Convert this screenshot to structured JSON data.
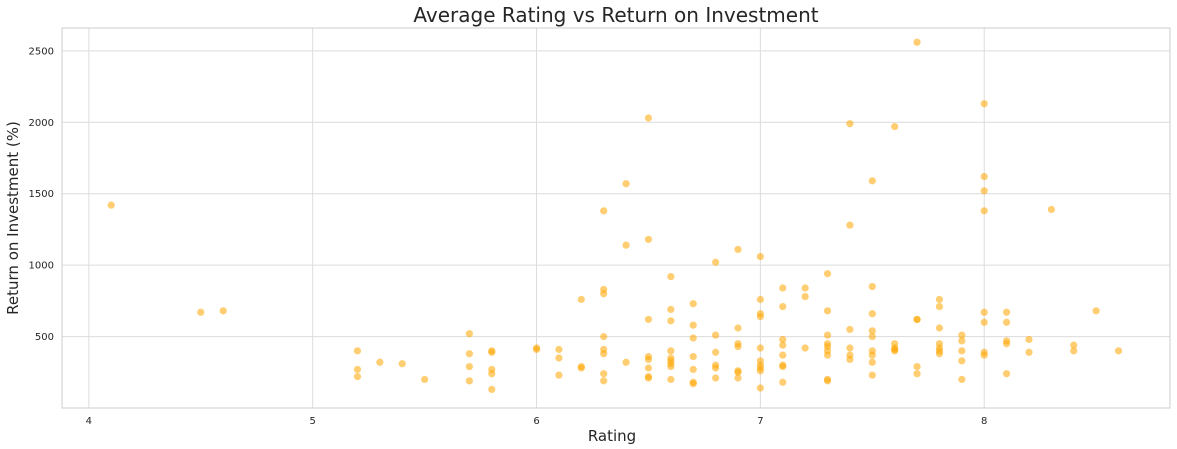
{
  "chart_data": {
    "type": "scatter",
    "title": "Average Rating vs Return on Investment",
    "xlabel": "Rating",
    "ylabel": "Return on Investment (%)",
    "xlim": [
      3.88,
      8.83
    ],
    "ylim": [
      0,
      2660
    ],
    "xticks": [
      4,
      5,
      6,
      7,
      8
    ],
    "yticks": [
      500,
      1000,
      1500,
      2000,
      2500
    ],
    "grid": true,
    "marker_color": "#FFA500",
    "marker_opacity": 0.55,
    "points": [
      [
        4.1,
        1420
      ],
      [
        4.5,
        670
      ],
      [
        4.6,
        680
      ],
      [
        5.2,
        400
      ],
      [
        5.2,
        270
      ],
      [
        5.2,
        220
      ],
      [
        5.3,
        320
      ],
      [
        5.4,
        310
      ],
      [
        5.5,
        200
      ],
      [
        5.7,
        520
      ],
      [
        5.7,
        380
      ],
      [
        5.7,
        290
      ],
      [
        5.7,
        190
      ],
      [
        5.8,
        400
      ],
      [
        5.8,
        390
      ],
      [
        5.8,
        270
      ],
      [
        5.8,
        240
      ],
      [
        5.8,
        130
      ],
      [
        6.0,
        420
      ],
      [
        6.0,
        410
      ],
      [
        6.1,
        410
      ],
      [
        6.1,
        350
      ],
      [
        6.1,
        230
      ],
      [
        6.2,
        760
      ],
      [
        6.2,
        290
      ],
      [
        6.2,
        280
      ],
      [
        6.3,
        1380
      ],
      [
        6.3,
        830
      ],
      [
        6.3,
        800
      ],
      [
        6.3,
        500
      ],
      [
        6.3,
        410
      ],
      [
        6.3,
        380
      ],
      [
        6.3,
        240
      ],
      [
        6.3,
        190
      ],
      [
        6.4,
        1570
      ],
      [
        6.4,
        1140
      ],
      [
        6.4,
        320
      ],
      [
        6.5,
        2030
      ],
      [
        6.5,
        1180
      ],
      [
        6.5,
        620
      ],
      [
        6.5,
        360
      ],
      [
        6.5,
        340
      ],
      [
        6.5,
        280
      ],
      [
        6.5,
        220
      ],
      [
        6.5,
        210
      ],
      [
        6.6,
        920
      ],
      [
        6.6,
        690
      ],
      [
        6.6,
        610
      ],
      [
        6.6,
        400
      ],
      [
        6.6,
        350
      ],
      [
        6.6,
        330
      ],
      [
        6.6,
        310
      ],
      [
        6.6,
        290
      ],
      [
        6.6,
        200
      ],
      [
        6.7,
        730
      ],
      [
        6.7,
        580
      ],
      [
        6.7,
        490
      ],
      [
        6.7,
        360
      ],
      [
        6.7,
        270
      ],
      [
        6.7,
        180
      ],
      [
        6.7,
        170
      ],
      [
        6.8,
        1020
      ],
      [
        6.8,
        510
      ],
      [
        6.8,
        390
      ],
      [
        6.8,
        300
      ],
      [
        6.8,
        280
      ],
      [
        6.8,
        210
      ],
      [
        6.9,
        1110
      ],
      [
        6.9,
        560
      ],
      [
        6.9,
        450
      ],
      [
        6.9,
        430
      ],
      [
        6.9,
        260
      ],
      [
        6.9,
        250
      ],
      [
        6.9,
        210
      ],
      [
        7.0,
        1060
      ],
      [
        7.0,
        760
      ],
      [
        7.0,
        660
      ],
      [
        7.0,
        640
      ],
      [
        7.0,
        420
      ],
      [
        7.0,
        330
      ],
      [
        7.0,
        300
      ],
      [
        7.0,
        280
      ],
      [
        7.0,
        260
      ],
      [
        7.0,
        140
      ],
      [
        7.1,
        840
      ],
      [
        7.1,
        710
      ],
      [
        7.1,
        480
      ],
      [
        7.1,
        440
      ],
      [
        7.1,
        370
      ],
      [
        7.1,
        300
      ],
      [
        7.1,
        290
      ],
      [
        7.1,
        180
      ],
      [
        7.2,
        840
      ],
      [
        7.2,
        780
      ],
      [
        7.2,
        420
      ],
      [
        7.3,
        940
      ],
      [
        7.3,
        680
      ],
      [
        7.3,
        510
      ],
      [
        7.3,
        450
      ],
      [
        7.3,
        430
      ],
      [
        7.3,
        400
      ],
      [
        7.3,
        370
      ],
      [
        7.3,
        200
      ],
      [
        7.3,
        190
      ],
      [
        7.4,
        1990
      ],
      [
        7.4,
        1280
      ],
      [
        7.4,
        550
      ],
      [
        7.4,
        420
      ],
      [
        7.4,
        370
      ],
      [
        7.4,
        340
      ],
      [
        7.5,
        1590
      ],
      [
        7.5,
        850
      ],
      [
        7.5,
        660
      ],
      [
        7.5,
        540
      ],
      [
        7.5,
        500
      ],
      [
        7.5,
        400
      ],
      [
        7.5,
        370
      ],
      [
        7.5,
        320
      ],
      [
        7.5,
        230
      ],
      [
        7.6,
        1970
      ],
      [
        7.6,
        450
      ],
      [
        7.6,
        420
      ],
      [
        7.6,
        410
      ],
      [
        7.6,
        400
      ],
      [
        7.7,
        2560
      ],
      [
        7.7,
        620
      ],
      [
        7.7,
        620
      ],
      [
        7.7,
        290
      ],
      [
        7.7,
        240
      ],
      [
        7.8,
        760
      ],
      [
        7.8,
        710
      ],
      [
        7.8,
        560
      ],
      [
        7.8,
        450
      ],
      [
        7.8,
        420
      ],
      [
        7.8,
        400
      ],
      [
        7.8,
        380
      ],
      [
        7.9,
        510
      ],
      [
        7.9,
        470
      ],
      [
        7.9,
        400
      ],
      [
        7.9,
        330
      ],
      [
        7.9,
        200
      ],
      [
        8.0,
        2130
      ],
      [
        8.0,
        1620
      ],
      [
        8.0,
        1520
      ],
      [
        8.0,
        1380
      ],
      [
        8.0,
        670
      ],
      [
        8.0,
        600
      ],
      [
        8.0,
        390
      ],
      [
        8.0,
        370
      ],
      [
        8.1,
        670
      ],
      [
        8.1,
        600
      ],
      [
        8.1,
        470
      ],
      [
        8.1,
        450
      ],
      [
        8.1,
        240
      ],
      [
        8.2,
        480
      ],
      [
        8.2,
        390
      ],
      [
        8.3,
        1390
      ],
      [
        8.4,
        440
      ],
      [
        8.4,
        400
      ],
      [
        8.5,
        680
      ],
      [
        8.6,
        400
      ]
    ]
  }
}
